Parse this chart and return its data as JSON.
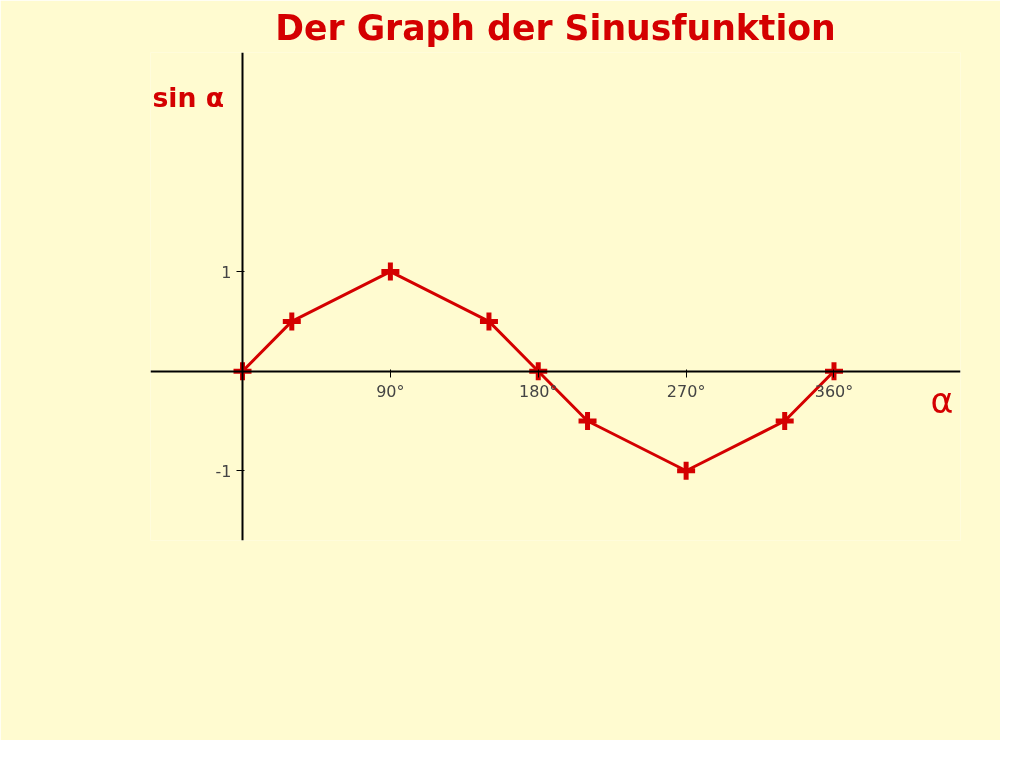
{
  "chart_data": {
    "type": "line",
    "title": "Der Graph der Sinusfunktion",
    "xlabel": "α",
    "ylabel": "sin α",
    "x": [
      0,
      30,
      90,
      150,
      180,
      210,
      270,
      330,
      360
    ],
    "series": [
      {
        "color": "#d40000",
        "values": [
          0,
          0.5,
          1,
          0.5,
          0,
          -0.5,
          -1,
          -0.5,
          0
        ]
      }
    ],
    "xlim": [
      -56,
      437
    ],
    "ylim": [
      -1.7,
      3.2
    ],
    "xticks": [
      {
        "value": 90,
        "label": "90°"
      },
      {
        "value": 180,
        "label": "180°"
      },
      {
        "value": 270,
        "label": "270°"
      },
      {
        "value": 360,
        "label": "360°"
      }
    ],
    "yticks": [
      1,
      -1
    ],
    "grid": false,
    "marker": "cross",
    "line_style": "solid"
  }
}
